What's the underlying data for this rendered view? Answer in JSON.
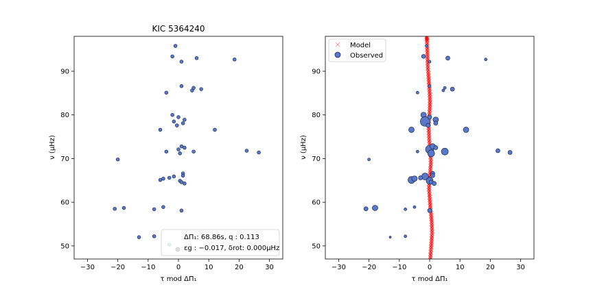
{
  "chart_data": [
    {
      "type": "scatter",
      "title": "KIC 5364240",
      "xlabel": "τ mod ΔΠ₁",
      "ylabel": "ν (μHz)",
      "xlim": [
        -34.4,
        34.4
      ],
      "ylim": [
        47,
        98
      ],
      "xticks": [
        "−30",
        "−20",
        "−10",
        "0",
        "10",
        "20",
        "30"
      ],
      "xtick_values": [
        -30,
        -20,
        -10,
        0,
        10,
        20,
        30
      ],
      "yticks": [
        "50",
        "60",
        "70",
        "80",
        "90"
      ],
      "ytick_values": [
        50,
        60,
        70,
        80,
        90
      ],
      "grid": false,
      "annotation": {
        "line1": "ΔΠ₁: 68.86s, q : 0.113",
        "line2": "εg : −0.017, δrot: 0.000μHz",
        "placement": "lower-right"
      },
      "series": [
        {
          "color": "#5a78c8",
          "marker": "circle",
          "points": [
            [
              -1,
              95.8
            ],
            [
              -2,
              93.4
            ],
            [
              6,
              93.0
            ],
            [
              18.5,
              92.7
            ],
            [
              1,
              92.2
            ],
            [
              1,
              86.6
            ],
            [
              -4,
              85.1
            ],
            [
              4.5,
              85.6
            ],
            [
              5,
              86.2
            ],
            [
              7.5,
              85.9
            ],
            [
              -2,
              80.0
            ],
            [
              0,
              79.5
            ],
            [
              2,
              78.9
            ],
            [
              -1.5,
              78.5
            ],
            [
              1.5,
              78.1
            ],
            [
              -0.5,
              77.6
            ],
            [
              -6,
              76.6
            ],
            [
              12,
              76.6
            ],
            [
              1,
              72.8
            ],
            [
              2,
              72.5
            ],
            [
              0,
              72.1
            ],
            [
              -4,
              71.6
            ],
            [
              5,
              71.6
            ],
            [
              0.5,
              71.2
            ],
            [
              22.5,
              71.8
            ],
            [
              26.5,
              71.4
            ],
            [
              -20,
              69.8
            ],
            [
              1.5,
              66.6
            ],
            [
              1.5,
              66.1
            ],
            [
              -1.5,
              65.9
            ],
            [
              -3,
              65.6
            ],
            [
              -5,
              65.4
            ],
            [
              -6,
              65.1
            ],
            [
              0.5,
              64.9
            ],
            [
              1,
              64.6
            ],
            [
              2,
              64.3
            ],
            [
              -21,
              58.5
            ],
            [
              -18,
              58.7
            ],
            [
              -8,
              58.4
            ],
            [
              -5,
              58.9
            ],
            [
              1,
              58.1
            ],
            [
              -13,
              52.0
            ],
            [
              -8,
              52.2
            ],
            [
              -3,
              50.3
            ]
          ]
        }
      ]
    },
    {
      "type": "scatter",
      "title": "",
      "xlabel": "τ mod ΔΠ₁",
      "ylabel": "ν (μHz)",
      "xlim": [
        -34.4,
        34.4
      ],
      "ylim": [
        47,
        98
      ],
      "xticks": [
        "−30",
        "−20",
        "−10",
        "0",
        "10",
        "20",
        "30"
      ],
      "xtick_values": [
        -30,
        -20,
        -10,
        0,
        10,
        20,
        30
      ],
      "yticks": [
        "50",
        "60",
        "70",
        "80",
        "90"
      ],
      "ytick_values": [
        50,
        60,
        70,
        80,
        90
      ],
      "grid": false,
      "legend": {
        "placement": "top-left",
        "entries": [
          "Model",
          "Observed"
        ]
      },
      "series": [
        {
          "name": "Model",
          "color": "#ff0000",
          "marker": "x",
          "curve": [
            [
              0.2,
              47
            ],
            [
              0.4,
              49
            ],
            [
              0.6,
              51
            ],
            [
              0.8,
              53
            ],
            [
              0.7,
              55
            ],
            [
              0.5,
              57
            ],
            [
              0.2,
              59
            ],
            [
              0,
              61
            ],
            [
              -0.2,
              63
            ],
            [
              -0.1,
              65
            ],
            [
              0.2,
              67
            ],
            [
              0.4,
              69
            ],
            [
              0.3,
              71
            ],
            [
              0,
              73
            ],
            [
              -0.2,
              75
            ],
            [
              -0.3,
              77
            ],
            [
              -0.2,
              79
            ],
            [
              0,
              81
            ],
            [
              0.1,
              83
            ],
            [
              0,
              85
            ],
            [
              -0.2,
              87
            ],
            [
              -0.4,
              89
            ],
            [
              -0.6,
              91
            ],
            [
              -0.7,
              93
            ],
            [
              -0.8,
              95
            ],
            [
              -0.9,
              97
            ],
            [
              -1,
              98
            ]
          ]
        },
        {
          "name": "Observed",
          "color": "#5a78c8",
          "marker": "circle",
          "points": [
            [
              -1,
              95.8,
              2
            ],
            [
              -2,
              93.4,
              3
            ],
            [
              6,
              93.0,
              3
            ],
            [
              18.5,
              92.7,
              2
            ],
            [
              0,
              92.2,
              2
            ],
            [
              0,
              86.6,
              2
            ],
            [
              -4,
              85.1,
              2
            ],
            [
              4.5,
              85.6,
              2
            ],
            [
              5,
              86.2,
              2
            ],
            [
              7.5,
              85.9,
              3
            ],
            [
              -2,
              80.0,
              4
            ],
            [
              -1.5,
              78.5,
              7
            ],
            [
              0,
              79.5,
              3
            ],
            [
              2,
              78.9,
              4
            ],
            [
              2,
              78.1,
              3
            ],
            [
              -0.5,
              77.6,
              3
            ],
            [
              -6,
              76.6,
              4
            ],
            [
              12,
              76.6,
              4
            ],
            [
              0,
              72.1,
              6
            ],
            [
              1,
              72.8,
              4
            ],
            [
              2,
              72.5,
              3
            ],
            [
              -4,
              71.6,
              2
            ],
            [
              5,
              71.6,
              5
            ],
            [
              0.5,
              71.2,
              5
            ],
            [
              22.5,
              71.8,
              3
            ],
            [
              26.5,
              71.4,
              3
            ],
            [
              -20,
              69.8,
              2
            ],
            [
              1,
              66.6,
              3
            ],
            [
              1,
              66.1,
              3
            ],
            [
              -1.5,
              65.9,
              5
            ],
            [
              -3,
              65.6,
              3
            ],
            [
              -6,
              65.1,
              5
            ],
            [
              -5,
              65.4,
              4
            ],
            [
              0,
              64.9,
              5
            ],
            [
              0.5,
              64.6,
              3
            ],
            [
              1.5,
              64.3,
              3
            ],
            [
              -21,
              58.5,
              3
            ],
            [
              -18,
              58.7,
              4
            ],
            [
              -8,
              58.4,
              2
            ],
            [
              -5,
              58.9,
              2
            ],
            [
              0,
              58.1,
              3
            ],
            [
              -13,
              52.0,
              1.5
            ],
            [
              -8,
              52.2,
              2
            ]
          ]
        }
      ]
    }
  ]
}
